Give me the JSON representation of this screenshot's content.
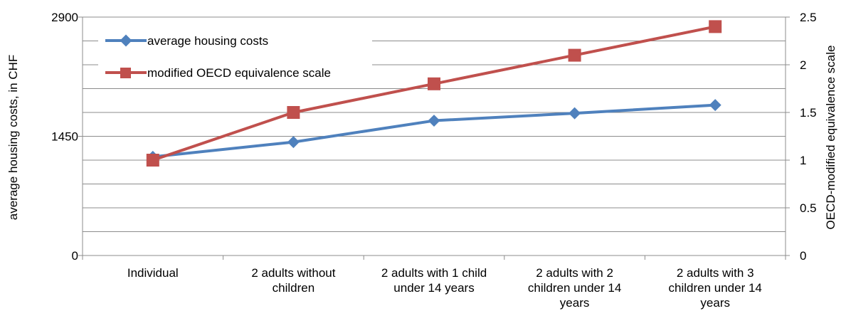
{
  "chart_data": {
    "type": "line",
    "categories": [
      "Individual",
      "2 adults without children",
      "2 adults with 1 child under 14 years",
      "2 adults with 2 children under 14 years",
      "2 adults with 3 children under 14 years"
    ],
    "category_lines": [
      [
        "Individual"
      ],
      [
        "2 adults without",
        "children"
      ],
      [
        "2 adults with 1 child",
        "under 14 years"
      ],
      [
        "2 adults with 2",
        "children under 14",
        "years"
      ],
      [
        "2 adults with 3",
        "children under 14",
        "years"
      ]
    ],
    "series": [
      {
        "name": "average housing costs",
        "axis": "left",
        "color": "#4F81BD",
        "marker": "diamond",
        "values": [
          1200,
          1380,
          1640,
          1730,
          1830
        ]
      },
      {
        "name": "modified OECD equivalence scale",
        "axis": "right",
        "color": "#C0504D",
        "marker": "square",
        "values": [
          1.0,
          1.5,
          1.8,
          2.1,
          2.4
        ]
      }
    ],
    "ylabel_left": "average housing costs, in CHF",
    "ylabel_right": "OECD-modified equivalence scale",
    "ylim_left": [
      0,
      2900
    ],
    "ylim_right": [
      0,
      2.5
    ],
    "yticks_left": [
      "0",
      "1450",
      "2900"
    ],
    "yticks_left_values": [
      0,
      1450,
      2900
    ],
    "yticks_right": [
      "0",
      "0.5",
      "1",
      "1.5",
      "2",
      "2.5"
    ],
    "yticks_right_values": [
      0,
      0.5,
      1,
      1.5,
      2,
      2.5
    ],
    "gridlines": true,
    "legend_position": "top-left"
  }
}
